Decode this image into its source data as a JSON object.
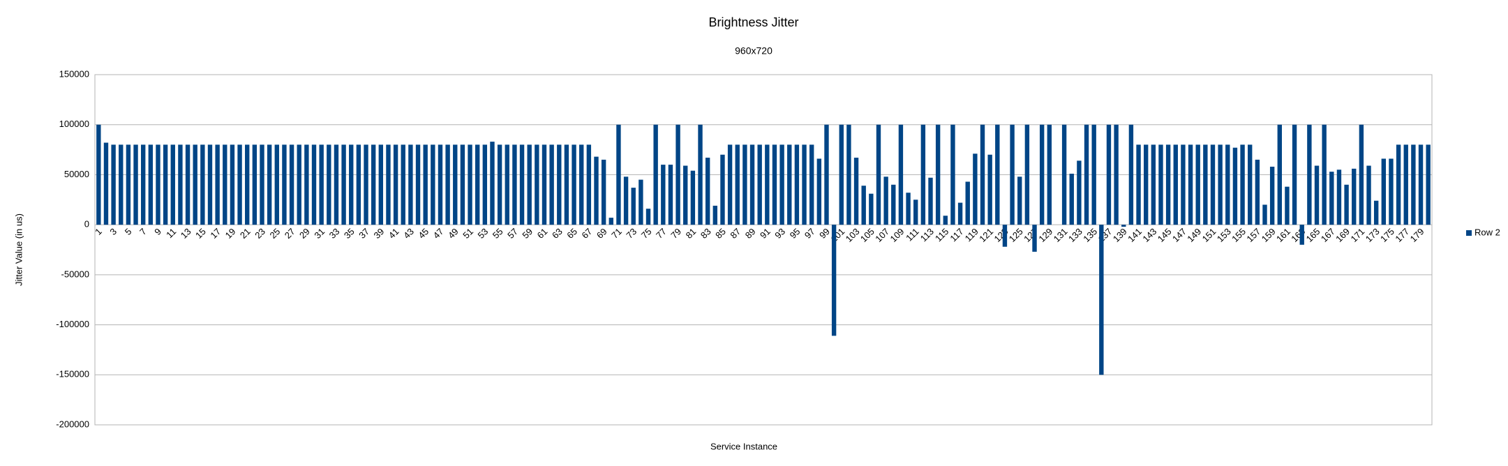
{
  "chart_data": {
    "type": "bar",
    "title": "Brightness Jitter",
    "subtitle": "960x720",
    "x_label": "Service Instance",
    "y_label": "Jitter Value (in us)",
    "categories": [
      "1",
      null,
      "3",
      null,
      "5",
      null,
      "7",
      null,
      "9",
      null,
      "11",
      null,
      "13",
      null,
      "15",
      null,
      "17",
      null,
      "19",
      null,
      "21",
      null,
      "23",
      null,
      "25",
      null,
      "27",
      null,
      "29",
      null,
      "31",
      null,
      "33",
      null,
      "35",
      null,
      "37",
      null,
      "39",
      null,
      "41",
      null,
      "43",
      null,
      "45",
      null,
      "47",
      null,
      "49",
      null,
      "51",
      null,
      "53",
      null,
      "55",
      null,
      "57",
      null,
      "59",
      null,
      "61",
      null,
      "63",
      null,
      "65",
      null,
      "67",
      null,
      "69",
      null,
      "71",
      null,
      "73",
      null,
      "75",
      null,
      "77",
      null,
      "79",
      null,
      "81",
      null,
      "83",
      null,
      "85",
      null,
      "87",
      null,
      "89",
      null,
      "91",
      null,
      "93",
      null,
      "95",
      null,
      "97",
      null,
      "99",
      null,
      "101",
      null,
      "103",
      null,
      "105",
      null,
      "107",
      null,
      "109",
      null,
      "111",
      null,
      "113",
      null,
      "115",
      null,
      "117",
      null,
      "119",
      null,
      "121",
      null,
      "123",
      null,
      "125",
      null,
      "127",
      null,
      "129",
      null,
      "131",
      null,
      "133",
      null,
      "135",
      null,
      "137",
      null,
      "139",
      null,
      "141",
      null,
      "143",
      null,
      "145",
      null,
      "147",
      null,
      "149",
      null,
      "151",
      null,
      "153",
      null,
      "155",
      null,
      "157",
      null,
      "159",
      null,
      "161",
      null,
      "163",
      null,
      "165",
      null,
      "167",
      null,
      "169",
      null,
      "171",
      null,
      "173",
      null,
      "175",
      null,
      "177",
      null,
      "179",
      null
    ],
    "series": [
      {
        "name": "Row 2",
        "color": "#004586",
        "values": [
          100000,
          82000,
          80000,
          80000,
          80000,
          80000,
          80000,
          80000,
          80000,
          80000,
          80000,
          80000,
          80000,
          80000,
          80000,
          80000,
          80000,
          80000,
          80000,
          80000,
          80000,
          80000,
          80000,
          80000,
          80000,
          80000,
          80000,
          80000,
          80000,
          80000,
          80000,
          80000,
          80000,
          80000,
          80000,
          80000,
          80000,
          80000,
          80000,
          80000,
          80000,
          80000,
          80000,
          80000,
          80000,
          80000,
          80000,
          80000,
          80000,
          80000,
          80000,
          80000,
          80000,
          83000,
          80000,
          80000,
          80000,
          80000,
          80000,
          80000,
          80000,
          80000,
          80000,
          80000,
          80000,
          80000,
          80000,
          68000,
          65000,
          7000,
          100000,
          48000,
          37000,
          45000,
          16000,
          100000,
          60000,
          60000,
          100000,
          59000,
          54000,
          100000,
          67000,
          19000,
          70000,
          80000,
          80000,
          80000,
          80000,
          80000,
          80000,
          80000,
          80000,
          80000,
          80000,
          80000,
          80000,
          66000,
          100000,
          -111000,
          100000,
          100000,
          67000,
          39000,
          31000,
          100000,
          48000,
          40000,
          100000,
          32000,
          25000,
          100000,
          47000,
          100000,
          9000,
          100000,
          22000,
          43000,
          71000,
          100000,
          70000,
          100000,
          -22000,
          100000,
          48000,
          100000,
          -27000,
          100000,
          100000,
          0,
          100000,
          51000,
          64000,
          100000,
          100000,
          -150000,
          100000,
          100000,
          -2000,
          100000,
          80000,
          80000,
          80000,
          80000,
          80000,
          80000,
          80000,
          80000,
          80000,
          80000,
          80000,
          80000,
          80000,
          77000,
          80000,
          80000,
          65000,
          20000,
          58000,
          100000,
          38000,
          100000,
          -20000,
          100000,
          59000,
          100000,
          53000,
          55000,
          40000,
          56000,
          100000,
          59000,
          24000,
          66000,
          66000,
          80000,
          80000,
          80000,
          80000,
          80000
        ]
      }
    ],
    "ylim": [
      -200000,
      150000
    ],
    "yticks": [
      -200000,
      -150000,
      -100000,
      -50000,
      0,
      50000,
      100000,
      150000
    ],
    "grid": true,
    "legend": "right"
  }
}
